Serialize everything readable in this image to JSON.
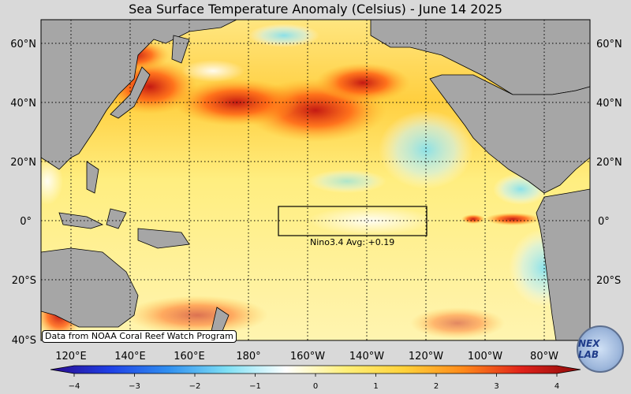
{
  "title": "Sea Surface Temperature Anomaly (Celsius) - June 14 2025",
  "lat_labels": [
    "60°N",
    "40°N",
    "20°N",
    "0°",
    "20°S",
    "40°S"
  ],
  "lon_labels": [
    "120°E",
    "140°E",
    "160°E",
    "180°",
    "160°W",
    "140°W",
    "120°W",
    "100°W",
    "80°W"
  ],
  "region_box": {
    "label": "Nino3.4 Avg: +0.19"
  },
  "colorbar": {
    "ticks": [
      "−4",
      "−3",
      "−2",
      "−1",
      "0",
      "1",
      "2",
      "3",
      "4"
    ],
    "min": -4,
    "max": 4,
    "colors": [
      "#2a0a8c",
      "#1f3fe6",
      "#2f8ff0",
      "#7fe0f4",
      "#ffffff",
      "#fff07a",
      "#ffd23a",
      "#ff8a1a",
      "#e0221a",
      "#8c0a0a"
    ]
  },
  "credit": "Data from NOAA Coral Reef Watch Program",
  "logo_text": "NEX LAB",
  "colors": {
    "ocean_warm": "#ffd23a",
    "ocean_hot": "#e0221a",
    "land": "#a6a6a6",
    "cool": "#7fe0f4"
  }
}
